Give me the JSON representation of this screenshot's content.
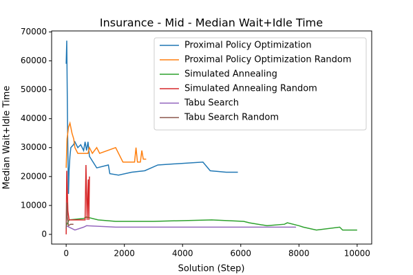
{
  "chart_data": {
    "type": "line",
    "title": "Insurance - Mid - Median Wait+Idle Time",
    "x_label": "Solution (Step)",
    "y_label": "Median Wait+Idle Time",
    "xlim": [
      -500,
      10500
    ],
    "ylim": [
      -3350,
      70350
    ],
    "xticks": [
      0,
      2000,
      4000,
      6000,
      8000,
      10000
    ],
    "yticks": [
      0,
      10000,
      20000,
      30000,
      40000,
      50000,
      60000,
      70000
    ],
    "legend": "upper right",
    "series": [
      {
        "name": "Proximal Policy Optimization",
        "color": "#1f77b4",
        "x": [
          0,
          20,
          50,
          80,
          100,
          130,
          160,
          250,
          300,
          400,
          500,
          600,
          650,
          700,
          750,
          800,
          1050,
          1450,
          1500,
          1800,
          2250,
          2700,
          3150,
          4700,
          4950,
          5500,
          5900
        ],
        "values": [
          59000,
          67000,
          35000,
          14000,
          22000,
          27000,
          30000,
          31000,
          32000,
          30000,
          31000,
          29000,
          32000,
          29000,
          32000,
          27000,
          23000,
          24000,
          21000,
          20500,
          21500,
          22000,
          24000,
          25000,
          22000,
          21500,
          21500
        ]
      },
      {
        "name": "Proximal Policy Optimization Random",
        "color": "#ff7f0e",
        "x": [
          0,
          30,
          80,
          130,
          200,
          260,
          300,
          400,
          750,
          800,
          900,
          1050,
          1150,
          1700,
          1950,
          2350,
          2400,
          2450,
          2550,
          2600,
          2650,
          2750
        ],
        "values": [
          23000,
          33000,
          37000,
          38500,
          35000,
          33000,
          30000,
          28000,
          28000,
          30000,
          28000,
          30000,
          28000,
          30000,
          25000,
          25000,
          30000,
          25000,
          25000,
          29000,
          26000,
          26000
        ]
      },
      {
        "name": "Simulated Annealing",
        "color": "#2ca02c",
        "x": [
          0,
          100,
          600,
          700,
          1100,
          1700,
          3000,
          5000,
          6100,
          6300,
          6900,
          7500,
          7600,
          8000,
          8150,
          8600,
          9400,
          9500,
          10000
        ],
        "values": [
          3000,
          5000,
          5500,
          6000,
          5000,
          4500,
          4500,
          5000,
          4500,
          4000,
          3000,
          3500,
          4000,
          3000,
          2500,
          1500,
          2500,
          1500,
          1500
        ]
      },
      {
        "name": "Simulated Annealing Random",
        "color": "#d62728",
        "x": [
          0,
          20,
          60,
          100,
          650,
          680,
          720,
          760,
          780,
          800
        ],
        "values": [
          0,
          22000,
          8000,
          5000,
          5000,
          24000,
          5000,
          19000,
          5000,
          20000
        ]
      },
      {
        "name": "Tabu Search",
        "color": "#9467bd",
        "x": [
          0,
          300,
          600,
          700,
          1700,
          7900
        ],
        "values": [
          3000,
          1500,
          2500,
          3000,
          2500,
          2500
        ]
      },
      {
        "name": "Tabu Search Random",
        "color": "#8c564b",
        "x": [
          0,
          20,
          40,
          80,
          150,
          250
        ],
        "values": [
          2000,
          11000,
          6000,
          3000,
          3500,
          3500
        ]
      }
    ]
  }
}
